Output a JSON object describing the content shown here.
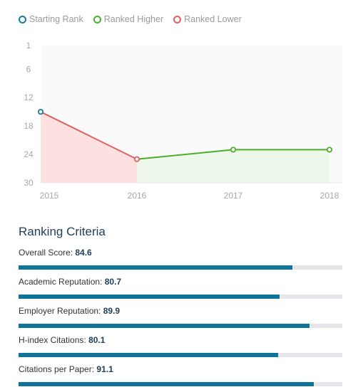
{
  "legend": {
    "items": [
      {
        "label": "Starting Rank",
        "color": "#1a7a9c"
      },
      {
        "label": "Ranked Higher",
        "color": "#4caf2c"
      },
      {
        "label": "Ranked Lower",
        "color": "#e06060"
      }
    ]
  },
  "chart_data": {
    "type": "line",
    "x": [
      "2015",
      "2016",
      "2017",
      "2018"
    ],
    "y_ticks": [
      1,
      6,
      12,
      18,
      24,
      30
    ],
    "ylim": [
      30,
      1
    ],
    "y_inverted": true,
    "values": [
      15,
      25,
      23,
      23
    ],
    "segments": [
      {
        "from": 0,
        "to": 1,
        "kind": "Ranked Lower",
        "color": "#e06060",
        "fill": "#fde0e0"
      },
      {
        "from": 1,
        "to": 3,
        "kind": "Ranked Higher",
        "color": "#4caf2c",
        "fill": "#eef8ea"
      }
    ],
    "points": [
      {
        "x": "2015",
        "y": 15,
        "kind": "Starting Rank",
        "color": "#1a7a9c"
      },
      {
        "x": "2016",
        "y": 25,
        "kind": "Ranked Lower",
        "color": "#e06060"
      },
      {
        "x": "2017",
        "y": 23,
        "kind": "Ranked Higher",
        "color": "#4caf2c"
      },
      {
        "x": "2018",
        "y": 23,
        "kind": "Ranked Higher",
        "color": "#4caf2c"
      }
    ],
    "grid": false
  },
  "criteria": {
    "title": "Ranking Criteria",
    "bar_color": "#0f7497",
    "track_color": "#e6e6ea",
    "max": 100,
    "items": [
      {
        "label": "Overall Score:",
        "value": "84.6",
        "score": 84.6
      },
      {
        "label": "Academic Reputation:",
        "value": "80.7",
        "score": 80.7
      },
      {
        "label": "Employer Reputation:",
        "value": "89.9",
        "score": 89.9
      },
      {
        "label": "H-index Citations:",
        "value": "80.1",
        "score": 80.1
      },
      {
        "label": "Citations per Paper:",
        "value": "91.1",
        "score": 91.1
      }
    ]
  }
}
